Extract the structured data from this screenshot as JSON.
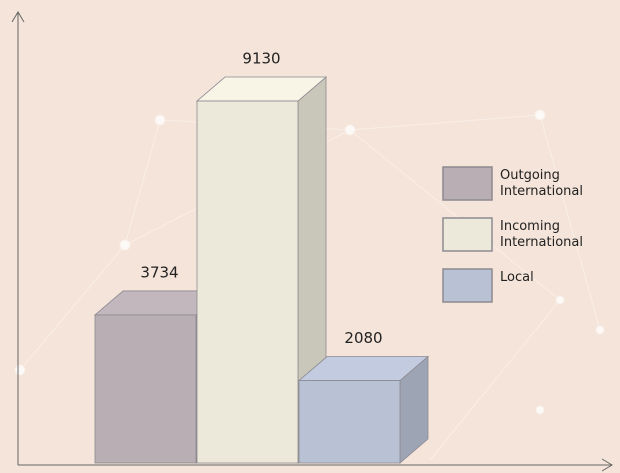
{
  "chart_data": {
    "type": "bar",
    "series": [
      {
        "name": "Outgoing International",
        "color": "#b8aeb3",
        "values": [
          3734
        ]
      },
      {
        "name": "Incoming International",
        "color": "#ece9db",
        "values": [
          9130
        ]
      },
      {
        "name": "Local",
        "color": "#b9c1d4",
        "values": [
          2080
        ]
      }
    ],
    "ylim": [
      0,
      11300
    ]
  }
}
